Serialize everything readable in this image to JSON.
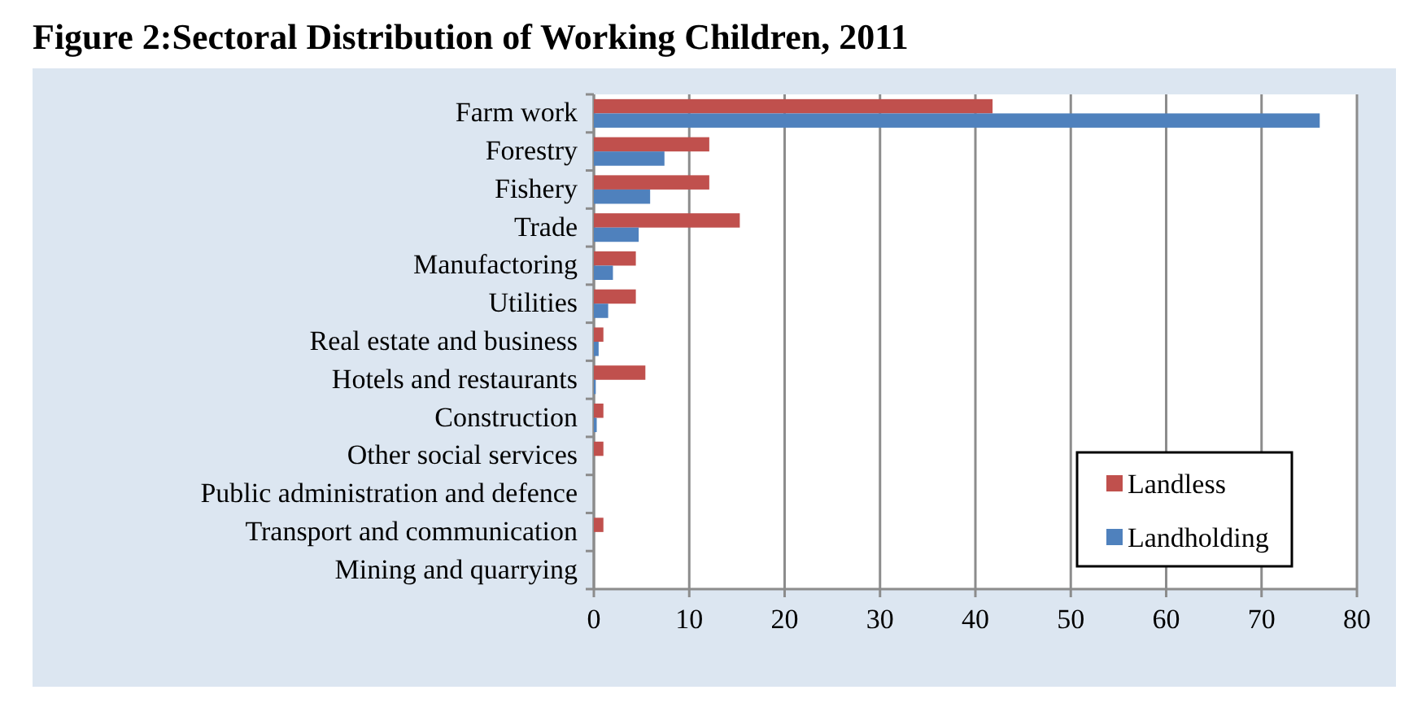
{
  "chart_data": {
    "type": "bar",
    "orientation": "horizontal",
    "title": "Figure 2:Sectoral Distribution of Working Children, 2011",
    "categories": [
      "Farm work",
      "Forestry",
      "Fishery",
      "Trade",
      "Manufactoring",
      "Utilities",
      "Real estate and business",
      "Hotels and restaurants",
      "Construction",
      "Other social services",
      "Public administration and defence",
      "Transport and communication",
      "Mining and quarrying"
    ],
    "series": [
      {
        "name": "Landless",
        "color": "#c0504d",
        "values": [
          41.8,
          12.1,
          12.1,
          15.3,
          4.4,
          4.4,
          1.0,
          5.4,
          1.0,
          1.0,
          0,
          1.0,
          0
        ]
      },
      {
        "name": "Landholding",
        "color": "#4f81bd",
        "values": [
          76.1,
          7.4,
          5.9,
          4.7,
          2.0,
          1.5,
          0.5,
          0.2,
          0.3,
          null,
          0,
          null,
          0
        ]
      }
    ],
    "xlim": [
      0,
      80
    ],
    "xticks": [
      0,
      10,
      20,
      30,
      40,
      50,
      60,
      70,
      80
    ],
    "grid": "x",
    "legend": "bottom right"
  }
}
